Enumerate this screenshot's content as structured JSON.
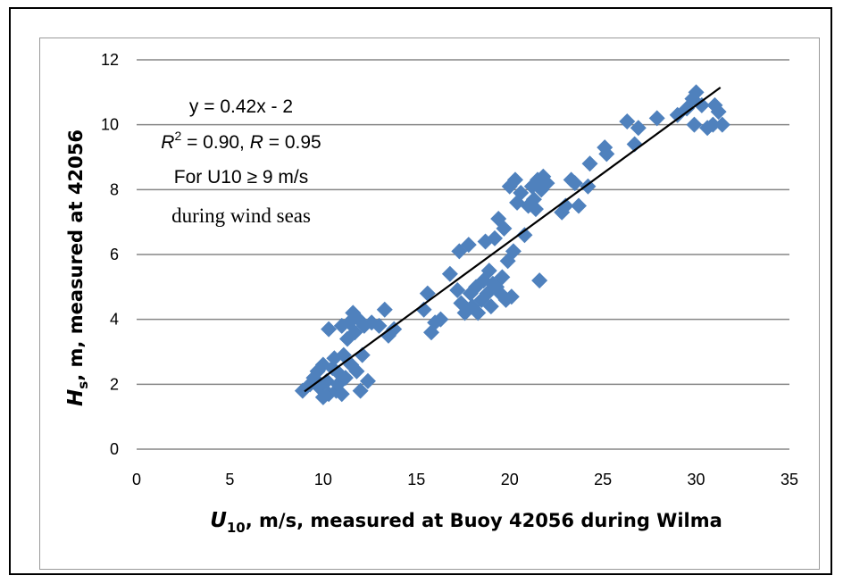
{
  "chart_data": {
    "type": "scatter",
    "title": "",
    "xlabel": "U10, m/s, measured at Buoy 42056 during Wilma",
    "xlabel_parts": {
      "symbol": "U",
      "subscript": "10",
      "rest": ", m/s, measured at Buoy 42056 during Wilma"
    },
    "ylabel": "Hs, m, measured at 42056",
    "ylabel_parts": {
      "symbol": "H",
      "subscript": "s",
      "rest": ", m, measured at 42056"
    },
    "xlim": [
      0,
      35
    ],
    "ylim": [
      0,
      12
    ],
    "xticks": [
      0,
      5,
      10,
      15,
      20,
      25,
      30,
      35
    ],
    "yticks": [
      0,
      2,
      4,
      6,
      8,
      10,
      12
    ],
    "grid": "horizontal",
    "marker": "diamond",
    "marker_color": "#4f81bd",
    "line_color": "#000000",
    "grid_color": "#868686",
    "annotation": {
      "line1": "y = 0.42x - 2",
      "line2_prefix": "R",
      "line2_sup": "2",
      "line2_mid": " = 0.90, ",
      "line2_r": "R",
      "line2_end": " = 0.95",
      "line3": "For U10 ≥ 9 m/s",
      "line4": "during wind seas"
    },
    "trendline": {
      "slope": 0.42,
      "intercept": -2,
      "x_start": 9,
      "x_end": 31.3
    },
    "points": [
      [
        8.9,
        1.8
      ],
      [
        9.3,
        2.0
      ],
      [
        9.5,
        2.2
      ],
      [
        9.7,
        2.4
      ],
      [
        9.8,
        1.9
      ],
      [
        10.0,
        2.6
      ],
      [
        10.0,
        1.6
      ],
      [
        10.2,
        2.1
      ],
      [
        10.3,
        1.7
      ],
      [
        10.3,
        3.7
      ],
      [
        10.5,
        2.5
      ],
      [
        10.6,
        2.8
      ],
      [
        10.7,
        1.8
      ],
      [
        10.8,
        2.0
      ],
      [
        10.9,
        2.3
      ],
      [
        11.0,
        3.8
      ],
      [
        11.0,
        1.7
      ],
      [
        11.1,
        2.9
      ],
      [
        11.2,
        2.2
      ],
      [
        11.3,
        3.4
      ],
      [
        11.4,
        3.9
      ],
      [
        11.5,
        2.6
      ],
      [
        11.6,
        4.2
      ],
      [
        11.7,
        3.6
      ],
      [
        11.8,
        2.4
      ],
      [
        11.9,
        4.0
      ],
      [
        12.0,
        1.8
      ],
      [
        12.1,
        2.9
      ],
      [
        12.2,
        3.8
      ],
      [
        12.4,
        2.1
      ],
      [
        12.6,
        3.9
      ],
      [
        13.0,
        3.8
      ],
      [
        13.3,
        4.3
      ],
      [
        13.5,
        3.5
      ],
      [
        13.8,
        3.7
      ],
      [
        15.4,
        4.3
      ],
      [
        15.6,
        4.8
      ],
      [
        15.8,
        3.6
      ],
      [
        16.0,
        3.9
      ],
      [
        16.3,
        4.0
      ],
      [
        16.8,
        5.4
      ],
      [
        17.2,
        4.9
      ],
      [
        17.3,
        6.1
      ],
      [
        17.4,
        4.5
      ],
      [
        17.6,
        4.2
      ],
      [
        17.8,
        6.3
      ],
      [
        17.9,
        4.8
      ],
      [
        18.0,
        4.4
      ],
      [
        18.2,
        5.0
      ],
      [
        18.3,
        4.2
      ],
      [
        18.5,
        4.6
      ],
      [
        18.6,
        5.2
      ],
      [
        18.7,
        6.4
      ],
      [
        18.8,
        4.8
      ],
      [
        18.9,
        5.5
      ],
      [
        19.0,
        4.4
      ],
      [
        19.1,
        5.1
      ],
      [
        19.2,
        6.5
      ],
      [
        19.3,
        5.0
      ],
      [
        19.4,
        7.1
      ],
      [
        19.5,
        4.8
      ],
      [
        19.6,
        5.3
      ],
      [
        19.7,
        6.8
      ],
      [
        19.8,
        4.6
      ],
      [
        19.9,
        5.8
      ],
      [
        20.0,
        8.1
      ],
      [
        20.1,
        4.7
      ],
      [
        20.2,
        6.1
      ],
      [
        20.3,
        8.3
      ],
      [
        20.4,
        7.6
      ],
      [
        20.6,
        7.9
      ],
      [
        20.8,
        6.6
      ],
      [
        21.0,
        7.5
      ],
      [
        21.2,
        8.1
      ],
      [
        21.3,
        7.7
      ],
      [
        21.4,
        7.4
      ],
      [
        21.5,
        8.3
      ],
      [
        21.6,
        5.2
      ],
      [
        21.7,
        8.0
      ],
      [
        21.8,
        8.4
      ],
      [
        22.0,
        8.2
      ],
      [
        22.8,
        7.3
      ],
      [
        23.0,
        7.5
      ],
      [
        23.3,
        8.3
      ],
      [
        23.5,
        8.2
      ],
      [
        23.7,
        7.5
      ],
      [
        24.2,
        8.1
      ],
      [
        24.3,
        8.8
      ],
      [
        25.1,
        9.3
      ],
      [
        25.2,
        9.1
      ],
      [
        26.3,
        10.1
      ],
      [
        26.7,
        9.4
      ],
      [
        26.9,
        9.9
      ],
      [
        27.9,
        10.2
      ],
      [
        29.0,
        10.3
      ],
      [
        29.5,
        10.5
      ],
      [
        29.8,
        10.8
      ],
      [
        29.9,
        10.0
      ],
      [
        30.0,
        11.0
      ],
      [
        30.3,
        10.6
      ],
      [
        30.6,
        9.9
      ],
      [
        30.9,
        10.0
      ],
      [
        31.0,
        10.6
      ],
      [
        31.2,
        10.4
      ],
      [
        31.4,
        10.0
      ]
    ]
  }
}
